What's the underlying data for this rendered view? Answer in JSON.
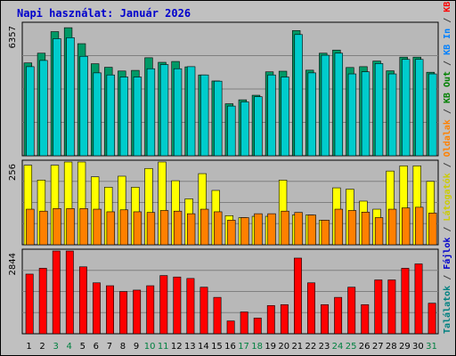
{
  "title": "Napi használat: Január 2026",
  "colors": {
    "frame_bg": "#c0c0c0",
    "panel_bg": "#b8b8b8",
    "grid": "#808080",
    "hits": "#00cccc",
    "files": "#009966",
    "pages_front": "#ff8000",
    "pages_back": "#ffff00",
    "kbytes": "#ff0000",
    "title": "#0000cc",
    "weekend_tick": "#008040"
  },
  "side_labels": [
    {
      "text": "Találatok",
      "color": "#008080"
    },
    {
      "text": " / ",
      "color": "#404040"
    },
    {
      "text": "Fájlok",
      "color": "#0000cc"
    },
    {
      "text": " / ",
      "color": "#404040"
    },
    {
      "text": "Látogatók",
      "color": "#cccc00"
    },
    {
      "text": " / ",
      "color": "#404040"
    },
    {
      "text": "Oldalak",
      "color": "#ff8000"
    },
    {
      "text": " / ",
      "color": "#404040"
    },
    {
      "text": "KB Out",
      "color": "#008000"
    },
    {
      "text": " / ",
      "color": "#404040"
    },
    {
      "text": "KB In",
      "color": "#0080ff"
    },
    {
      "text": " / ",
      "color": "#404040"
    },
    {
      "text": "KB F",
      "color": "#ff0000"
    }
  ],
  "chart_data": {
    "type": "bar",
    "categories": [
      "1",
      "2",
      "3",
      "4",
      "5",
      "6",
      "7",
      "8",
      "9",
      "10",
      "11",
      "12",
      "13",
      "14",
      "15",
      "16",
      "17",
      "18",
      "19",
      "20",
      "21",
      "22",
      "23",
      "24",
      "25",
      "26",
      "27",
      "28",
      "29",
      "30",
      "31"
    ],
    "weekend_days": [
      "3",
      "4",
      "10",
      "11",
      "17",
      "18",
      "24",
      "25",
      "31"
    ],
    "panels": [
      {
        "name": "top",
        "max_label": "6357",
        "ymax": 6357,
        "series": [
          {
            "role": "back",
            "values": [
              4480,
              4950,
              5990,
              6180,
              5410,
              4440,
              4270,
              4090,
              4120,
              4730,
              4510,
              4550,
              4290,
              3900,
              3610,
              2510,
              2700,
              2920,
              4050,
              4080,
              6040,
              4130,
              4950,
              5100,
              4260,
              4300,
              4570,
              4100,
              4760,
              4760,
              4030
            ]
          },
          {
            "role": "front",
            "values": [
              4300,
              4600,
              5650,
              5700,
              4800,
              4000,
              3900,
              3800,
              3800,
              4200,
              4400,
              4200,
              4300,
              3900,
              3600,
              2400,
              2600,
              2850,
              3900,
              3800,
              5850,
              4000,
              4850,
              4950,
              3950,
              4050,
              4450,
              3950,
              4650,
              4650,
              3950
            ]
          }
        ]
      },
      {
        "name": "middle",
        "max_label": "256",
        "ymax": 256,
        "series": [
          {
            "role": "back",
            "values": [
              246,
              200,
              246,
              256,
              256,
              210,
              178,
              212,
              178,
              236,
              256,
              198,
              142,
              220,
              168,
              90,
              84,
              88,
              88,
              200,
              92,
              92,
              76,
              176,
              172,
              135,
              110,
              228,
              244,
              244,
              196
            ]
          },
          {
            "role": "front",
            "values": [
              110,
              104,
              112,
              112,
              112,
              110,
              102,
              108,
              102,
              100,
              106,
              104,
              96,
              110,
              102,
              76,
              84,
              96,
              96,
              104,
              100,
              92,
              76,
              110,
              106,
              101,
              84,
              110,
              114,
              116,
              98
            ]
          }
        ]
      },
      {
        "name": "bottom",
        "max_label": "2844",
        "ymax": 2844,
        "series": [
          {
            "role": "single",
            "values": [
              2050,
              2250,
              2844,
              2844,
              2300,
              1750,
              1650,
              1450,
              1500,
              1650,
              2000,
              1950,
              1900,
              1600,
              1250,
              440,
              750,
              540,
              970,
              1000,
              2600,
              1750,
              1000,
              1250,
              1600,
              1000,
              1850,
              1850,
              2250,
              2400,
              1050
            ]
          }
        ]
      }
    ]
  }
}
